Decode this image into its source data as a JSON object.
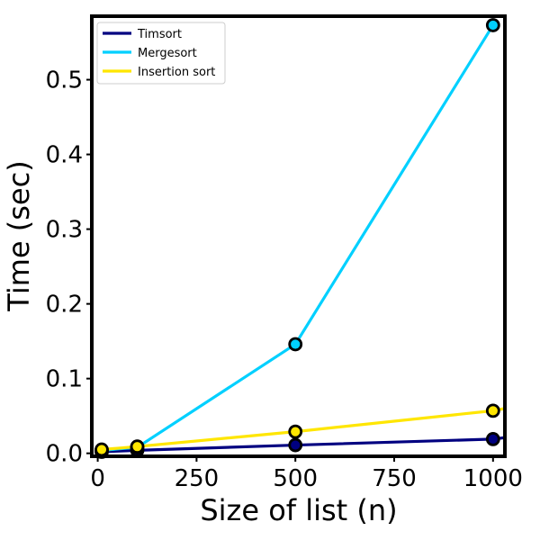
{
  "chart_data": {
    "type": "line",
    "title": "",
    "xlabel": "Size of list (n)",
    "ylabel": "Time (sec)",
    "xlim": [
      -15,
      1030
    ],
    "ylim": [
      -0.004,
      0.585
    ],
    "x_ticks": [
      0,
      250,
      500,
      750,
      1000
    ],
    "y_ticks": [
      0.0,
      0.1,
      0.2,
      0.3,
      0.4,
      0.5
    ],
    "y_tick_labels": [
      "0.0",
      "0.1",
      "0.2",
      "0.3",
      "0.4",
      "0.5"
    ],
    "x": [
      10,
      100,
      500,
      1000
    ],
    "legend_position": "upper-left",
    "grid": false,
    "series": [
      {
        "name": "Timsort",
        "color": "#000080",
        "x": [
          10,
          100,
          500,
          1000
        ],
        "values": [
          0.002,
          0.004,
          0.011,
          0.019
        ],
        "line_x_end": 1030,
        "line_y_end": 0.021
      },
      {
        "name": "Mergesort",
        "color": "#00d0ff",
        "x": [
          10,
          100,
          500,
          1000
        ],
        "values": [
          0.004,
          0.008,
          0.146,
          0.573
        ],
        "line_x_end": 1000,
        "line_y_end": 0.573
      },
      {
        "name": "Insertion sort",
        "color": "#ffe600",
        "x": [
          10,
          100,
          500,
          1000
        ],
        "values": [
          0.005,
          0.009,
          0.029,
          0.057
        ],
        "line_x_end": 1030,
        "line_y_end": 0.06
      }
    ]
  }
}
